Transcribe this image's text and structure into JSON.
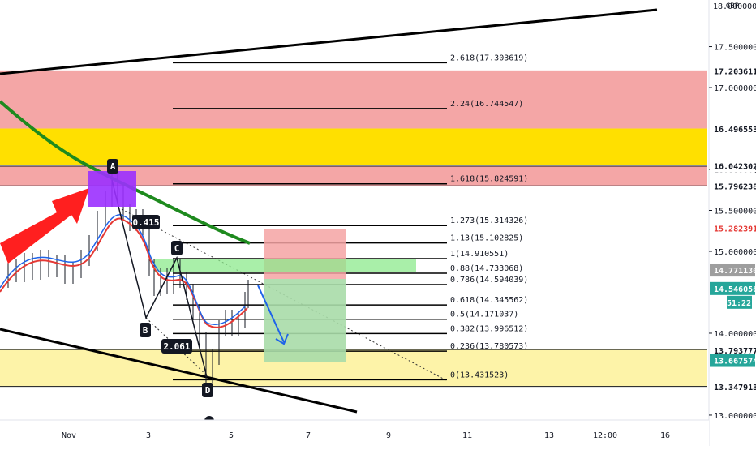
{
  "chart_data": {
    "type": "line",
    "title": "",
    "currency": "GBP",
    "y_range": [
      12.95,
      18.05
    ],
    "x_ticks": [
      "Nov",
      "3",
      "5",
      "7",
      "9",
      "11",
      "13",
      "12:00",
      "16"
    ],
    "y_ticks": [
      "17.500000",
      "17.000000",
      "16.000000",
      "15.500000",
      "15.000000",
      "14.000000",
      "13.000000"
    ],
    "y_tick_values": [
      17.5,
      17.0,
      16.0,
      15.5,
      15.0,
      14.0,
      13.0
    ],
    "top_partial_tick": "18.000000",
    "top_partial_tick_value": 18.0,
    "fib_levels": [
      {
        "label": "2.618(17.303619)",
        "value": 17.303619
      },
      {
        "label": "2.24(16.744547)",
        "value": 16.744547
      },
      {
        "label": "1.618(15.824591)",
        "value": 15.824591
      },
      {
        "label": "1.273(15.314326)",
        "value": 15.314326
      },
      {
        "label": "1.13(15.102825)",
        "value": 15.102825
      },
      {
        "label": "1(14.910551)",
        "value": 14.910551
      },
      {
        "label": "0.88(14.733068)",
        "value": 14.733068
      },
      {
        "label": "0.786(14.594039)",
        "value": 14.594039
      },
      {
        "label": "0.618(14.345562)",
        "value": 14.345562
      },
      {
        "label": "0.5(14.171037)",
        "value": 14.171037
      },
      {
        "label": "0.382(13.996512)",
        "value": 13.996512
      },
      {
        "label": "0.236(13.780573)",
        "value": 13.780573
      },
      {
        "label": "0(13.431523)",
        "value": 13.431523
      }
    ],
    "price_tags": [
      {
        "label": "17.203611",
        "value": 17.203611,
        "bg": "#ffffff",
        "fg": "#131722"
      },
      {
        "label": "16.496553",
        "value": 16.496553,
        "bg": "#ffffff",
        "fg": "#131722"
      },
      {
        "label": "16.042302",
        "value": 16.042302,
        "bg": "#ffffff",
        "fg": "#131722"
      },
      {
        "label": "15.796238",
        "value": 15.796238,
        "bg": "#ffffff",
        "fg": "#131722"
      },
      {
        "label": "15.282391",
        "value": 15.282391,
        "bg": "#ffffff",
        "fg": "#e53935"
      },
      {
        "label": "14.771130",
        "value": 14.77113,
        "bg": "#9e9e9e",
        "fg": "#ffffff"
      },
      {
        "label": "14.546056",
        "value": 14.546056,
        "bg": "#26a69a",
        "fg": "#ffffff"
      },
      {
        "label": "13.793777",
        "value": 13.793777,
        "bg": "#ffffff",
        "fg": "#131722"
      },
      {
        "label": "13.667574",
        "value": 13.667574,
        "bg": "#26a69a",
        "fg": "#ffffff"
      },
      {
        "label": "13.347913",
        "value": 13.347913,
        "bg": "#ffffff",
        "fg": "#131722"
      }
    ],
    "countdown": "51:22",
    "pattern_points": [
      "A",
      "B",
      "C",
      "D"
    ],
    "annotations": [
      "0.415",
      "2.061"
    ],
    "zones": [
      {
        "name": "upper-red-zone",
        "from": 16.5,
        "to": 17.21,
        "color": "#f4a6a6"
      },
      {
        "name": "yellow-zone",
        "from": 16.05,
        "to": 16.5,
        "color": "#ffe000"
      },
      {
        "name": "lower-red-zone",
        "from": 15.8,
        "to": 16.04,
        "color": "#f4a6a6"
      },
      {
        "name": "support-zone",
        "from": 13.35,
        "to": 13.8,
        "color": "#fdf3a8"
      }
    ],
    "colors": {
      "ema_green": "#1e8a1e",
      "ma_red": "#e53935",
      "ma_blue": "#1e63e9",
      "pattern_box": "#9b30ff",
      "big_arrow": "#ff1f1f",
      "projection_arrow": "#1e63e9"
    }
  }
}
